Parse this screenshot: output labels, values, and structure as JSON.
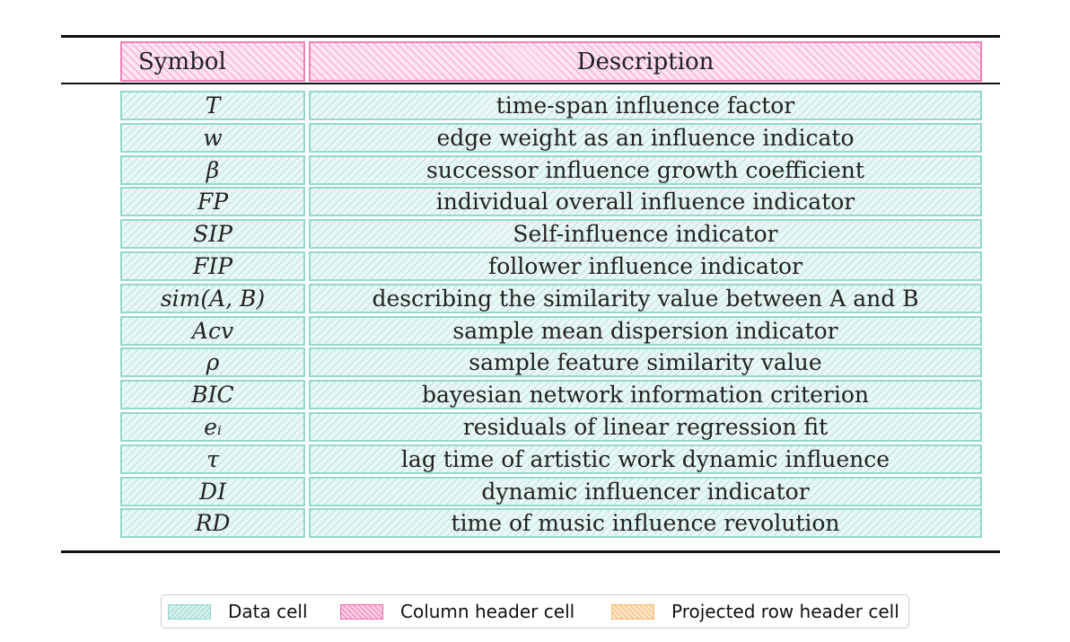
{
  "table": {
    "headers": {
      "symbol": "Symbol",
      "description": "Description"
    },
    "rows": [
      {
        "symbol": "T",
        "description": "time-span influence factor"
      },
      {
        "symbol": "w",
        "description": "edge weight as an influence indicato"
      },
      {
        "symbol": "β",
        "description": "successor influence growth coefficient"
      },
      {
        "symbol": "FP",
        "description": "individual overall influence indicator"
      },
      {
        "symbol": "SIP",
        "description": "Self-influence indicator"
      },
      {
        "symbol": "FIP",
        "description": "follower influence indicator"
      },
      {
        "symbol": "sim(A, B)",
        "description": "describing the similarity value between A and B"
      },
      {
        "symbol": "Acv",
        "description": "sample mean dispersion indicator"
      },
      {
        "symbol": "ρ",
        "description": "sample feature similarity value"
      },
      {
        "symbol": "BIC",
        "description": "bayesian network information criterion"
      },
      {
        "symbol": "eᵢ",
        "description": "residuals of linear regression fit"
      },
      {
        "symbol": "τ",
        "description": "lag time of artistic work dynamic influence"
      },
      {
        "symbol": "DI",
        "description": "dynamic influencer indicator"
      },
      {
        "symbol": "RD",
        "description": "time of music influence revolution"
      }
    ]
  },
  "legend": {
    "data_cell": "Data cell",
    "column_header_cell": "Column header cell",
    "projected_row_header_cell": "Projected row header cell"
  },
  "colors": {
    "data_cell": "#96d8cc",
    "column_header_cell": "#f080b8",
    "projected_row_header_cell": "#f5b870"
  }
}
